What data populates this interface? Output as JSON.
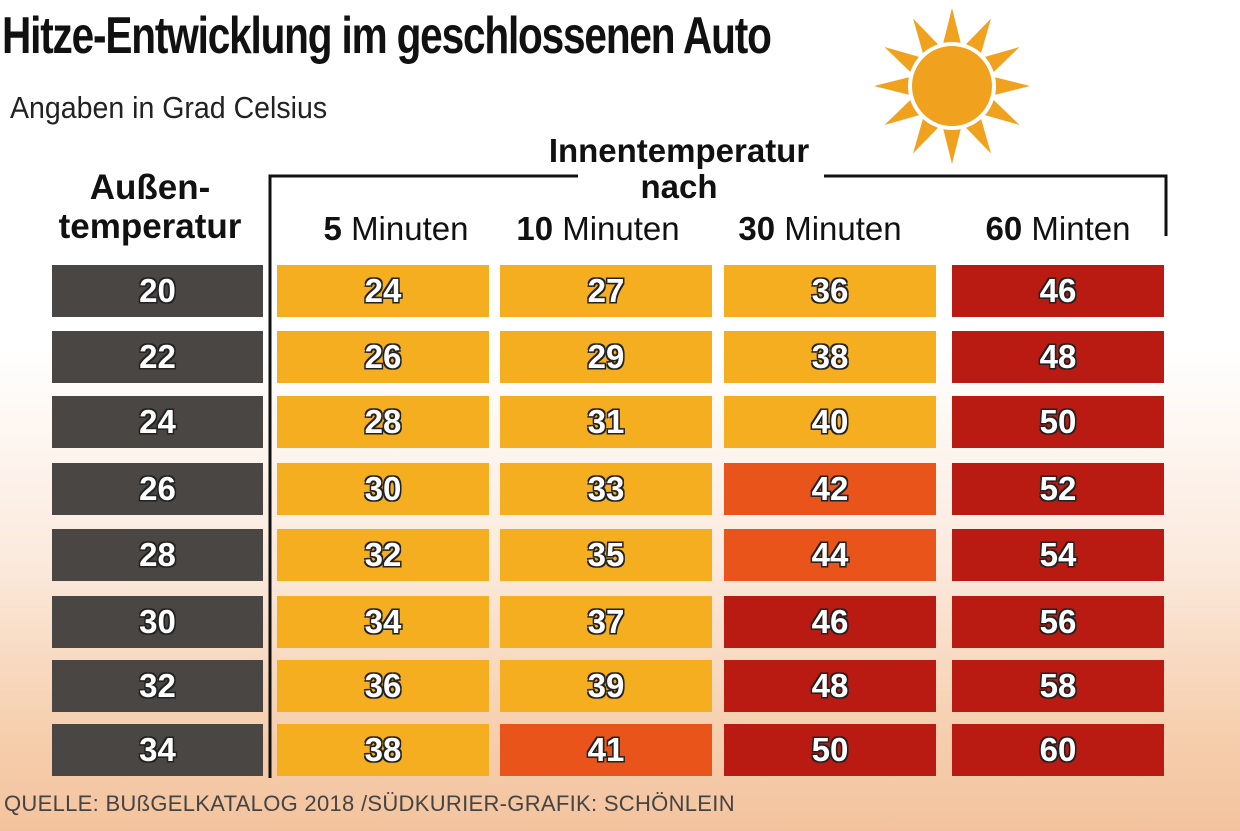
{
  "title": "Hitze-Entwicklung im geschlossenen Auto",
  "subtitle": "Angaben in Grad Celsius",
  "outside_header": [
    "Außen-",
    "temperatur"
  ],
  "inside_header": [
    "Innentemperatur",
    "nach"
  ],
  "columns": [
    {
      "num": "5",
      "unit": "Minuten"
    },
    {
      "num": "10",
      "unit": "Minuten"
    },
    {
      "num": "30",
      "unit": "Minuten"
    },
    {
      "num": "60",
      "unit": "Minten"
    }
  ],
  "source": "QUELLE: BUßGELKATALOG 2018 /SÜDKURIER-GRAFIK: SCHÖNLEIN",
  "colors": {
    "outside": "#4a4644",
    "warm": "#f5ae1f",
    "hot": "#e8541a",
    "very_hot": "#b91b12",
    "sun": "#f0a21e"
  },
  "chart_data": {
    "type": "table",
    "title": "Hitze-Entwicklung im geschlossenen Auto",
    "subtitle": "Angaben in Grad Celsius",
    "row_header": "Außentemperatur",
    "column_group_header": "Innentemperatur nach",
    "columns": [
      "5 Minuten",
      "10 Minuten",
      "30 Minuten",
      "60 Minten"
    ],
    "rows": [
      {
        "outside": 20,
        "values": [
          24,
          27,
          36,
          46
        ],
        "levels": [
          "warm",
          "warm",
          "warm",
          "very_hot"
        ]
      },
      {
        "outside": 22,
        "values": [
          26,
          29,
          38,
          48
        ],
        "levels": [
          "warm",
          "warm",
          "warm",
          "very_hot"
        ]
      },
      {
        "outside": 24,
        "values": [
          28,
          31,
          40,
          50
        ],
        "levels": [
          "warm",
          "warm",
          "warm",
          "very_hot"
        ]
      },
      {
        "outside": 26,
        "values": [
          30,
          33,
          42,
          52
        ],
        "levels": [
          "warm",
          "warm",
          "hot",
          "very_hot"
        ]
      },
      {
        "outside": 28,
        "values": [
          32,
          35,
          44,
          54
        ],
        "levels": [
          "warm",
          "warm",
          "hot",
          "very_hot"
        ]
      },
      {
        "outside": 30,
        "values": [
          34,
          37,
          46,
          56
        ],
        "levels": [
          "warm",
          "warm",
          "very_hot",
          "very_hot"
        ]
      },
      {
        "outside": 32,
        "values": [
          36,
          39,
          48,
          58
        ],
        "levels": [
          "warm",
          "warm",
          "very_hot",
          "very_hot"
        ]
      },
      {
        "outside": 34,
        "values": [
          38,
          41,
          50,
          60
        ],
        "levels": [
          "warm",
          "hot",
          "very_hot",
          "very_hot"
        ]
      }
    ]
  }
}
